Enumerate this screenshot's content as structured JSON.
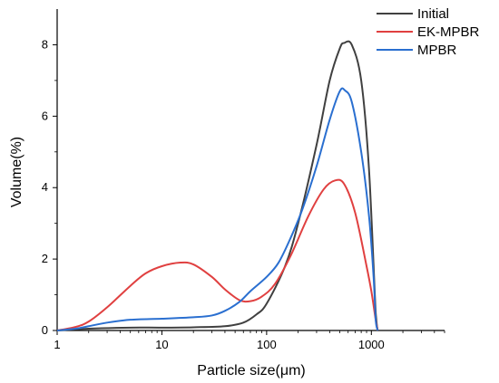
{
  "chart_data": {
    "type": "line",
    "title": "",
    "xlabel": "Particle size(μm)",
    "ylabel": "Volume(%)",
    "xscale": "log",
    "xlim": [
      1,
      5000
    ],
    "ylim": [
      0,
      9
    ],
    "xticks": [
      {
        "value": 1,
        "label": "1"
      },
      {
        "value": 10,
        "label": "10"
      },
      {
        "value": 100,
        "label": "100"
      },
      {
        "value": 1000,
        "label": "1000"
      }
    ],
    "yticks": [
      {
        "value": 0,
        "label": "0"
      },
      {
        "value": 2,
        "label": "2"
      },
      {
        "value": 4,
        "label": "4"
      },
      {
        "value": 6,
        "label": "6"
      },
      {
        "value": 8,
        "label": "8"
      }
    ],
    "grid": false,
    "legend": "top-right",
    "series": [
      {
        "name": "Initial",
        "color": "#404040",
        "points": [
          [
            1,
            0
          ],
          [
            2,
            0.05
          ],
          [
            5,
            0.08
          ],
          [
            10,
            0.08
          ],
          [
            20,
            0.09
          ],
          [
            40,
            0.12
          ],
          [
            60,
            0.22
          ],
          [
            80,
            0.45
          ],
          [
            100,
            0.75
          ],
          [
            150,
            1.8
          ],
          [
            200,
            3.0
          ],
          [
            300,
            5.2
          ],
          [
            400,
            7.0
          ],
          [
            500,
            7.9
          ],
          [
            550,
            8.05
          ],
          [
            650,
            8.0
          ],
          [
            800,
            7.0
          ],
          [
            950,
            4.5
          ],
          [
            1100,
            0.5
          ],
          [
            1150,
            0
          ]
        ]
      },
      {
        "name": "EK-MPBR",
        "color": "#e04040",
        "points": [
          [
            1,
            0
          ],
          [
            1.5,
            0.1
          ],
          [
            2,
            0.25
          ],
          [
            3,
            0.65
          ],
          [
            5,
            1.25
          ],
          [
            7,
            1.6
          ],
          [
            10,
            1.8
          ],
          [
            15,
            1.9
          ],
          [
            20,
            1.85
          ],
          [
            30,
            1.5
          ],
          [
            40,
            1.15
          ],
          [
            55,
            0.85
          ],
          [
            70,
            0.82
          ],
          [
            90,
            0.95
          ],
          [
            120,
            1.3
          ],
          [
            170,
            2.1
          ],
          [
            250,
            3.2
          ],
          [
            350,
            3.95
          ],
          [
            450,
            4.2
          ],
          [
            550,
            4.1
          ],
          [
            700,
            3.3
          ],
          [
            900,
            1.8
          ],
          [
            1000,
            1.1
          ],
          [
            1100,
            0.3
          ],
          [
            1150,
            0
          ]
        ]
      },
      {
        "name": "MPBR",
        "color": "#2a6fd0",
        "points": [
          [
            1,
            0
          ],
          [
            1.5,
            0.05
          ],
          [
            2,
            0.12
          ],
          [
            3,
            0.22
          ],
          [
            5,
            0.3
          ],
          [
            10,
            0.33
          ],
          [
            20,
            0.37
          ],
          [
            30,
            0.42
          ],
          [
            40,
            0.55
          ],
          [
            55,
            0.8
          ],
          [
            70,
            1.1
          ],
          [
            100,
            1.5
          ],
          [
            130,
            1.9
          ],
          [
            170,
            2.6
          ],
          [
            220,
            3.4
          ],
          [
            300,
            4.6
          ],
          [
            400,
            5.9
          ],
          [
            500,
            6.7
          ],
          [
            560,
            6.72
          ],
          [
            650,
            6.4
          ],
          [
            800,
            5.0
          ],
          [
            950,
            3.2
          ],
          [
            1050,
            1.5
          ],
          [
            1100,
            0.3
          ],
          [
            1150,
            0
          ]
        ]
      }
    ]
  }
}
